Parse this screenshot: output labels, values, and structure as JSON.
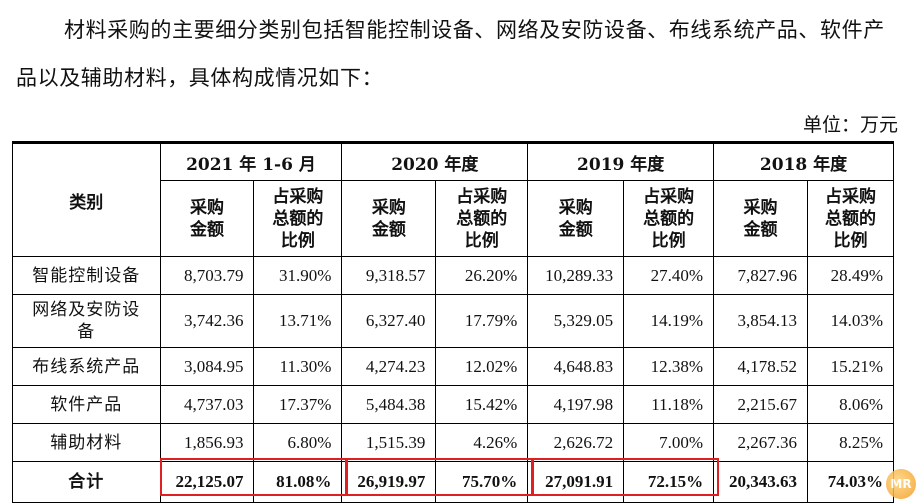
{
  "intro": "材料采购的主要细分类别包括智能控制设备、网络及安防设备、布线系统产品、软件产品以及辅助材料，具体构成情况如下：",
  "unit": "单位：万元",
  "table": {
    "col_category": "类别",
    "years": [
      "2021 年 1-6 月",
      "2020 年度",
      "2019 年度",
      "2018 年度"
    ],
    "sub_amount": [
      "采购",
      "金额"
    ],
    "sub_ratio": [
      "占采购",
      "总额的",
      "比例"
    ],
    "rows": [
      {
        "category": "智能控制设备",
        "values": [
          "8,703.79",
          "31.90%",
          "9,318.57",
          "26.20%",
          "10,289.33",
          "27.40%",
          "7,827.96",
          "28.49%"
        ]
      },
      {
        "category": "网络及安防设备",
        "values": [
          "3,742.36",
          "13.71%",
          "6,327.40",
          "17.79%",
          "5,329.05",
          "14.19%",
          "3,854.13",
          "14.03%"
        ]
      },
      {
        "category": "布线系统产品",
        "values": [
          "3,084.95",
          "11.30%",
          "4,274.23",
          "12.02%",
          "4,648.83",
          "12.38%",
          "4,178.52",
          "15.21%"
        ]
      },
      {
        "category": "软件产品",
        "values": [
          "4,737.03",
          "17.37%",
          "5,484.38",
          "15.42%",
          "4,197.98",
          "11.18%",
          "2,215.67",
          "8.06%"
        ]
      },
      {
        "category": "辅助材料",
        "values": [
          "1,856.93",
          "6.80%",
          "1,515.39",
          "4.26%",
          "2,626.72",
          "7.00%",
          "2,267.36",
          "8.25%"
        ]
      }
    ],
    "total": {
      "category": "合计",
      "values": [
        "22,125.07",
        "81.08%",
        "26,919.97",
        "75.70%",
        "27,091.91",
        "72.15%",
        "20,343.63",
        "74.03%"
      ]
    }
  },
  "highlight_color": "#e02020",
  "logo_text": "MR"
}
